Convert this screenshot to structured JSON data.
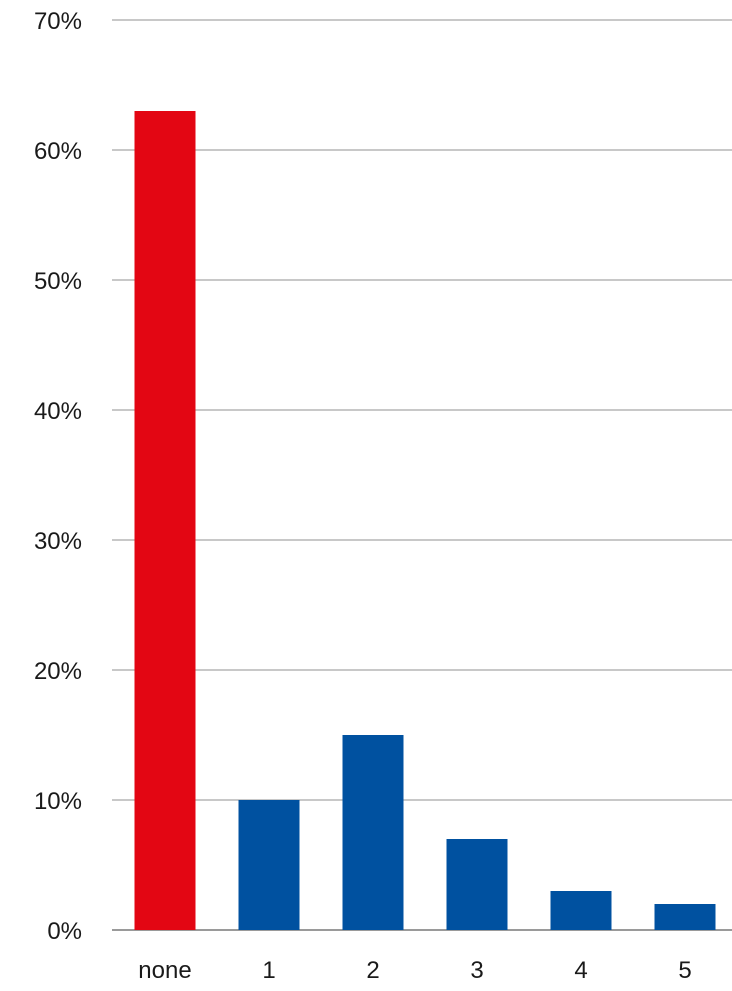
{
  "colors": {
    "highlight": "#e30613",
    "bar": "#0051a0",
    "grid": "#c8c8c8",
    "text": "#1a1a1a"
  },
  "chart_data": {
    "type": "bar",
    "title": "",
    "xlabel": "",
    "ylabel": "",
    "categories": [
      "none",
      "1",
      "2",
      "3",
      "4",
      "5"
    ],
    "values": [
      63,
      10,
      15,
      7,
      3,
      2
    ],
    "value_unit": "%",
    "ylim": [
      0,
      70
    ],
    "yticks": [
      0,
      10,
      20,
      30,
      40,
      50,
      60,
      70
    ],
    "ytick_labels": [
      "0%",
      "10%",
      "20%",
      "30%",
      "40%",
      "50%",
      "60%",
      "70%"
    ],
    "highlighted_category": "none",
    "grid": true,
    "legend": false
  }
}
